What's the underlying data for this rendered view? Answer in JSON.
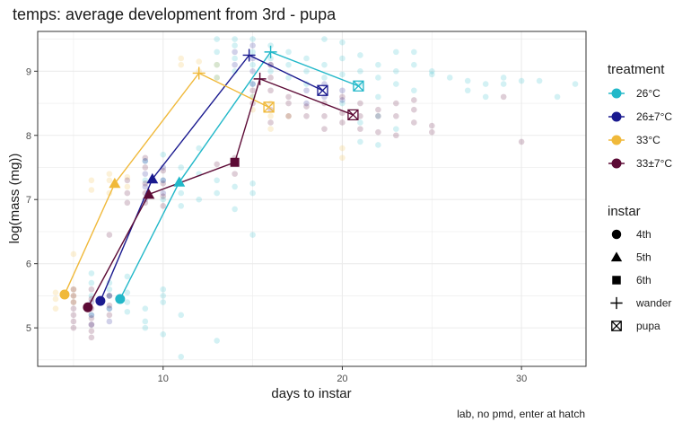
{
  "chart_data": {
    "type": "scatter",
    "title": "temps: average development from 3rd - pupa",
    "xlabel": "days to instar",
    "ylabel": "log(mass (mg))",
    "caption": "lab, no pmd, enter at hatch",
    "xlim": [
      3,
      33.6
    ],
    "ylim": [
      4.4,
      9.62
    ],
    "xticks": [
      10,
      20,
      30
    ],
    "xticklabels": [
      "10",
      "20",
      "30"
    ],
    "yticks": [
      5,
      6,
      7,
      8,
      9
    ],
    "yticklabels": [
      "5",
      "6",
      "7",
      "8",
      "9"
    ],
    "grid": true,
    "legend_position": "right",
    "legend": {
      "treatment_title": "treatment",
      "instar_title": "instar",
      "treatments": [
        {
          "label": "26°C",
          "color": "#22B8C9"
        },
        {
          "label": "26±7°C",
          "color": "#1A1A8F"
        },
        {
          "label": "33°C",
          "color": "#F0B93A"
        },
        {
          "label": "33±7°C",
          "color": "#5C0A35"
        }
      ],
      "instars": [
        {
          "label": "4th",
          "shape": "circle"
        },
        {
          "label": "5th",
          "shape": "triangle"
        },
        {
          "label": "6th",
          "shape": "square"
        },
        {
          "label": "wander",
          "shape": "plus"
        },
        {
          "label": "pupa",
          "shape": "square-x"
        }
      ]
    },
    "series": [
      {
        "name": "26°C",
        "color": "#22B8C9",
        "points": [
          {
            "x": 7.6,
            "y": 5.45,
            "instar": "4th"
          },
          {
            "x": 10.9,
            "y": 7.27,
            "instar": "5th"
          },
          {
            "x": 16.0,
            "y": 9.3,
            "instar": "wander"
          },
          {
            "x": 20.9,
            "y": 8.77,
            "instar": "pupa"
          }
        ]
      },
      {
        "name": "26±7°C",
        "color": "#1A1A8F",
        "points": [
          {
            "x": 6.5,
            "y": 5.42,
            "instar": "4th"
          },
          {
            "x": 9.4,
            "y": 7.32,
            "instar": "5th"
          },
          {
            "x": 14.8,
            "y": 9.25,
            "instar": "wander"
          },
          {
            "x": 18.9,
            "y": 8.7,
            "instar": "pupa"
          }
        ]
      },
      {
        "name": "33°C",
        "color": "#F0B93A",
        "points": [
          {
            "x": 4.5,
            "y": 5.52,
            "instar": "4th"
          },
          {
            "x": 7.3,
            "y": 7.25,
            "instar": "5th"
          },
          {
            "x": 12.0,
            "y": 8.97,
            "instar": "wander"
          },
          {
            "x": 15.9,
            "y": 8.44,
            "instar": "pupa"
          }
        ]
      },
      {
        "name": "33±7°C",
        "color": "#5C0A35",
        "points": [
          {
            "x": 5.8,
            "y": 5.32,
            "instar": "4th"
          },
          {
            "x": 9.2,
            "y": 7.08,
            "instar": "5th"
          },
          {
            "x": 14.0,
            "y": 7.58,
            "instar": "6th"
          },
          {
            "x": 15.4,
            "y": 8.88,
            "instar": "wander"
          },
          {
            "x": 20.6,
            "y": 8.32,
            "instar": "pupa"
          }
        ]
      }
    ],
    "raw_points": {
      "26°C": {
        "color": "#22B8C9",
        "points": [
          [
            6,
            5.2
          ],
          [
            6,
            5.5
          ],
          [
            6,
            5.7
          ],
          [
            6,
            5.85
          ],
          [
            7,
            5.3
          ],
          [
            7,
            5.5
          ],
          [
            7,
            5.7
          ],
          [
            7,
            5.6
          ],
          [
            8,
            5.4
          ],
          [
            8,
            5.55
          ],
          [
            8,
            5.8
          ],
          [
            8,
            5.25
          ],
          [
            9,
            5.1
          ],
          [
            9,
            5.3
          ],
          [
            9,
            5.0
          ],
          [
            10,
            5.5
          ],
          [
            10,
            5.6
          ],
          [
            10,
            5.4
          ],
          [
            10,
            4.9
          ],
          [
            11,
            5.2
          ],
          [
            11,
            4.55
          ],
          [
            13,
            4.8
          ],
          [
            9,
            7.6
          ],
          [
            9,
            7.3
          ],
          [
            10,
            7.7
          ],
          [
            10,
            7.3
          ],
          [
            10,
            7.0
          ],
          [
            11,
            7.5
          ],
          [
            11,
            7.1
          ],
          [
            11,
            6.9
          ],
          [
            12,
            7.4
          ],
          [
            12,
            7.0
          ],
          [
            12,
            7.8
          ],
          [
            13,
            7.3
          ],
          [
            13,
            7.1
          ],
          [
            14,
            7.2
          ],
          [
            14,
            6.85
          ],
          [
            15,
            7.25
          ],
          [
            15,
            7.1
          ],
          [
            15,
            6.45
          ],
          [
            13,
            9.5
          ],
          [
            13,
            9.3
          ],
          [
            13,
            9.1
          ],
          [
            13,
            8.9
          ],
          [
            14,
            9.5
          ],
          [
            14,
            9.4
          ],
          [
            14,
            9.2
          ],
          [
            14,
            9.0
          ],
          [
            15,
            9.5
          ],
          [
            15,
            9.3
          ],
          [
            15,
            9.1
          ],
          [
            15,
            8.8
          ],
          [
            15,
            8.6
          ],
          [
            16,
            9.4
          ],
          [
            16,
            9.2
          ],
          [
            16,
            9.0
          ],
          [
            17,
            9.3
          ],
          [
            17,
            9.1
          ],
          [
            17,
            8.9
          ],
          [
            18,
            9.2
          ],
          [
            18,
            9.0
          ],
          [
            18,
            8.8
          ],
          [
            19,
            9.5
          ],
          [
            19,
            9.1
          ],
          [
            19,
            8.9
          ],
          [
            20,
            9.2
          ],
          [
            20,
            8.95
          ],
          [
            20,
            9.45
          ],
          [
            21,
            9.0
          ],
          [
            21,
            8.8
          ],
          [
            21,
            9.25
          ],
          [
            22,
            8.9
          ],
          [
            22,
            8.6
          ],
          [
            22,
            9.1
          ],
          [
            23,
            9.0
          ],
          [
            23,
            8.8
          ],
          [
            23,
            9.3
          ],
          [
            24,
            9.1
          ],
          [
            24,
            8.7
          ],
          [
            24,
            9.3
          ],
          [
            25,
            8.95
          ],
          [
            25,
            9.0
          ],
          [
            26,
            8.9
          ],
          [
            27,
            8.85
          ],
          [
            27,
            8.7
          ],
          [
            28,
            8.8
          ],
          [
            28,
            8.6
          ],
          [
            29,
            8.9
          ],
          [
            29,
            8.8
          ],
          [
            30,
            8.85
          ],
          [
            31,
            8.85
          ],
          [
            32,
            8.6
          ],
          [
            33,
            8.8
          ],
          [
            20,
            8.5
          ],
          [
            21,
            8.2
          ],
          [
            22,
            8.3
          ],
          [
            23,
            8.1
          ],
          [
            21,
            7.9
          ],
          [
            22,
            7.85
          ]
        ]
      },
      "26±7°C": {
        "color": "#1A1A8F",
        "points": [
          [
            6,
            5.4
          ],
          [
            6,
            5.2
          ],
          [
            6,
            5.05
          ],
          [
            7,
            5.5
          ],
          [
            7,
            5.3
          ],
          [
            7,
            5.1
          ],
          [
            9,
            7.2
          ],
          [
            9,
            7.4
          ],
          [
            9,
            7.0
          ],
          [
            9,
            7.6
          ],
          [
            10,
            7.3
          ],
          [
            10,
            7.5
          ],
          [
            10,
            7.1
          ],
          [
            14,
            9.3
          ],
          [
            14,
            9.1
          ],
          [
            15,
            9.2
          ],
          [
            15,
            9.0
          ],
          [
            15,
            8.8
          ],
          [
            15,
            9.4
          ],
          [
            16,
            9.1
          ],
          [
            18,
            8.7
          ],
          [
            18,
            8.5
          ],
          [
            19,
            8.8
          ],
          [
            19,
            8.6
          ],
          [
            20,
            8.55
          ],
          [
            20,
            8.7
          ]
        ]
      },
      "33°C": {
        "color": "#F0B93A",
        "points": [
          [
            4,
            5.55
          ],
          [
            4,
            5.45
          ],
          [
            4,
            5.3
          ],
          [
            5,
            5.6
          ],
          [
            5,
            5.5
          ],
          [
            5,
            5.4
          ],
          [
            5,
            6.15
          ],
          [
            7,
            7.3
          ],
          [
            7,
            7.1
          ],
          [
            7,
            7.4
          ],
          [
            8,
            7.2
          ],
          [
            8,
            7.35
          ],
          [
            6,
            7.3
          ],
          [
            6,
            7.15
          ],
          [
            11,
            9.2
          ],
          [
            11,
            9.1
          ],
          [
            12,
            9.15
          ],
          [
            12,
            9.0
          ],
          [
            13,
            8.9
          ],
          [
            13,
            9.1
          ],
          [
            15,
            8.6
          ],
          [
            15,
            8.4
          ],
          [
            16,
            8.5
          ],
          [
            16,
            8.3
          ],
          [
            16,
            8.1
          ],
          [
            17,
            8.3
          ],
          [
            20,
            7.65
          ],
          [
            20,
            7.8
          ]
        ]
      },
      "33±7°C": {
        "color": "#5C0A35",
        "points": [
          [
            5,
            5.6
          ],
          [
            5,
            5.5
          ],
          [
            5,
            5.4
          ],
          [
            5,
            5.3
          ],
          [
            5,
            5.2
          ],
          [
            5,
            5.1
          ],
          [
            5,
            5.0
          ],
          [
            6,
            5.6
          ],
          [
            6,
            5.45
          ],
          [
            6,
            5.3
          ],
          [
            6,
            5.15
          ],
          [
            6,
            5.05
          ],
          [
            6,
            4.95
          ],
          [
            6,
            4.85
          ],
          [
            7,
            5.5
          ],
          [
            7,
            5.35
          ],
          [
            7,
            5.2
          ],
          [
            7,
            6.45
          ],
          [
            8,
            7.3
          ],
          [
            8,
            7.1
          ],
          [
            8,
            6.95
          ],
          [
            9,
            7.5
          ],
          [
            9,
            7.25
          ],
          [
            9,
            7.1
          ],
          [
            9,
            6.95
          ],
          [
            9,
            7.65
          ],
          [
            10,
            7.45
          ],
          [
            10,
            7.25
          ],
          [
            10,
            7.05
          ],
          [
            10,
            6.9
          ],
          [
            13,
            7.55
          ],
          [
            14,
            7.4
          ],
          [
            14,
            7.65
          ],
          [
            15,
            8.7
          ],
          [
            15,
            8.5
          ],
          [
            16,
            9.1
          ],
          [
            16,
            8.9
          ],
          [
            16,
            8.7
          ],
          [
            16,
            8.4
          ],
          [
            16,
            8.2
          ],
          [
            17,
            8.5
          ],
          [
            17,
            8.3
          ],
          [
            17,
            8.6
          ],
          [
            18,
            8.45
          ],
          [
            18,
            8.3
          ],
          [
            19,
            8.5
          ],
          [
            19,
            8.3
          ],
          [
            19,
            8.1
          ],
          [
            20,
            8.35
          ],
          [
            20,
            8.2
          ],
          [
            20,
            8.6
          ],
          [
            21,
            8.5
          ],
          [
            21,
            8.3
          ],
          [
            21,
            8.1
          ],
          [
            22,
            8.4
          ],
          [
            22,
            8.3
          ],
          [
            22,
            8.05
          ],
          [
            23,
            8.5
          ],
          [
            23,
            8.3
          ],
          [
            23,
            8.0
          ],
          [
            24,
            8.55
          ],
          [
            24,
            8.4
          ],
          [
            24,
            8.2
          ],
          [
            25,
            8.15
          ],
          [
            25,
            8.05
          ],
          [
            29,
            8.6
          ],
          [
            30,
            7.9
          ]
        ]
      }
    }
  }
}
